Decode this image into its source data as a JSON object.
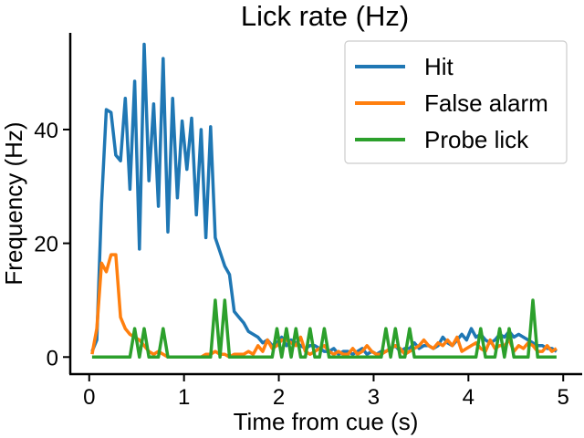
{
  "chart_data": {
    "type": "line",
    "title": "Lick rate (Hz)",
    "xlabel": "Time from cue (s)",
    "ylabel": "Frequency (Hz)",
    "xlim": [
      -0.2,
      5.2
    ],
    "ylim": [
      -3,
      57
    ],
    "xticks": [
      0,
      1,
      2,
      3,
      4,
      5
    ],
    "yticks": [
      0,
      20,
      40
    ],
    "legend": "top-right",
    "grid": false,
    "series": [
      {
        "name": "Hit",
        "color": "#1f77b4",
        "x": [
          0.03,
          0.08,
          0.13,
          0.18,
          0.23,
          0.28,
          0.33,
          0.38,
          0.43,
          0.48,
          0.53,
          0.58,
          0.63,
          0.68,
          0.73,
          0.78,
          0.83,
          0.88,
          0.93,
          0.98,
          1.03,
          1.08,
          1.13,
          1.18,
          1.23,
          1.28,
          1.33,
          1.38,
          1.43,
          1.48,
          1.53,
          1.58,
          1.63,
          1.68,
          1.73,
          1.78,
          1.83,
          1.88,
          1.93,
          1.98,
          2.03,
          2.08,
          2.13,
          2.18,
          2.23,
          2.28,
          2.33,
          2.38,
          2.43,
          2.48,
          2.53,
          2.58,
          2.63,
          2.68,
          2.73,
          2.78,
          2.83,
          2.88,
          2.93,
          2.98,
          3.03,
          3.08,
          3.13,
          3.18,
          3.23,
          3.28,
          3.33,
          3.38,
          3.43,
          3.48,
          3.53,
          3.58,
          3.63,
          3.68,
          3.73,
          3.78,
          3.83,
          3.88,
          3.93,
          3.98,
          4.03,
          4.08,
          4.13,
          4.18,
          4.23,
          4.28,
          4.33,
          4.38,
          4.43,
          4.48,
          4.53,
          4.58,
          4.63,
          4.68,
          4.73,
          4.78,
          4.83,
          4.88,
          4.93
        ],
        "y": [
          1,
          3,
          27,
          43.5,
          43,
          35.5,
          34.5,
          45.5,
          29.5,
          48.5,
          19,
          55,
          31,
          44.5,
          26.5,
          52.5,
          22,
          45.5,
          28,
          41.5,
          33,
          42,
          25,
          40,
          21,
          40.5,
          21,
          18.5,
          16,
          14.5,
          8,
          7,
          6,
          4.5,
          4,
          3.5,
          2.5,
          3,
          2,
          2.5,
          3.5,
          2,
          3,
          2.5,
          2,
          1.5,
          2,
          2,
          1.5,
          1,
          1,
          1.5,
          0.5,
          1,
          1,
          0.5,
          1,
          1.5,
          0.5,
          1,
          0.5,
          1,
          1,
          1.5,
          2,
          1,
          1.5,
          1.5,
          2.5,
          1.5,
          2,
          2,
          1.5,
          2,
          3.5,
          2.5,
          2,
          3,
          4,
          3,
          5,
          3.5,
          4,
          3,
          2.5,
          3,
          4,
          3.5,
          4.5,
          3.5,
          4,
          3.5,
          3,
          2.5,
          2,
          2,
          1.5,
          1.5,
          1
        ]
      },
      {
        "name": "False alarm",
        "color": "#ff7f0e",
        "x": [
          0.03,
          0.08,
          0.13,
          0.18,
          0.23,
          0.28,
          0.33,
          0.38,
          0.43,
          0.48,
          0.53,
          0.58,
          0.63,
          0.68,
          0.73,
          0.78,
          0.83,
          0.88,
          0.93,
          0.98,
          1.03,
          1.08,
          1.13,
          1.18,
          1.23,
          1.28,
          1.33,
          1.38,
          1.43,
          1.48,
          1.53,
          1.58,
          1.63,
          1.68,
          1.73,
          1.78,
          1.83,
          1.88,
          1.93,
          1.98,
          2.03,
          2.08,
          2.13,
          2.18,
          2.23,
          2.28,
          2.33,
          2.38,
          2.43,
          2.48,
          2.53,
          2.58,
          2.63,
          2.68,
          2.73,
          2.78,
          2.83,
          2.88,
          2.93,
          2.98,
          3.03,
          3.08,
          3.13,
          3.18,
          3.23,
          3.28,
          3.33,
          3.38,
          3.43,
          3.48,
          3.53,
          3.58,
          3.63,
          3.68,
          3.73,
          3.78,
          3.83,
          3.88,
          3.93,
          3.98,
          4.03,
          4.08,
          4.13,
          4.18,
          4.23,
          4.28,
          4.33,
          4.38,
          4.43,
          4.48,
          4.53,
          4.58,
          4.63,
          4.68,
          4.73,
          4.78,
          4.83,
          4.88,
          4.93
        ],
        "y": [
          0.5,
          5,
          16.5,
          15,
          18,
          18,
          7,
          5,
          4,
          3.5,
          3,
          2,
          1,
          0.5,
          1,
          0.5,
          0,
          0,
          0,
          0,
          0,
          0,
          0,
          0,
          0.5,
          0.5,
          1,
          0.5,
          0.5,
          0,
          0.5,
          0.5,
          0.5,
          1,
          0.5,
          2,
          1,
          3,
          1.5,
          2,
          3,
          3,
          2.5,
          2,
          3.5,
          1,
          0.5,
          1,
          1.5,
          2,
          1,
          0.5,
          1,
          0.5,
          0.5,
          1.5,
          0.5,
          1,
          2,
          1,
          0.5,
          0.5,
          1,
          1.5,
          2,
          1.5,
          0.5,
          1,
          1.5,
          2,
          3,
          2,
          1.5,
          2.5,
          2,
          3,
          2,
          3.5,
          1,
          1.5,
          2,
          2.5,
          1.5,
          1,
          3,
          1.5,
          2,
          2,
          3,
          1,
          2,
          1.5,
          2.5,
          2,
          1,
          1,
          2,
          1,
          1.5
        ]
      },
      {
        "name": "Probe lick",
        "color": "#2ca02c",
        "x": [
          0.03,
          0.08,
          0.13,
          0.18,
          0.23,
          0.28,
          0.33,
          0.38,
          0.43,
          0.48,
          0.53,
          0.58,
          0.63,
          0.68,
          0.73,
          0.78,
          0.83,
          0.88,
          0.93,
          0.98,
          1.03,
          1.08,
          1.13,
          1.18,
          1.23,
          1.28,
          1.33,
          1.38,
          1.43,
          1.48,
          1.53,
          1.58,
          1.63,
          1.68,
          1.73,
          1.78,
          1.83,
          1.88,
          1.93,
          1.98,
          2.03,
          2.08,
          2.13,
          2.18,
          2.23,
          2.28,
          2.33,
          2.38,
          2.43,
          2.48,
          2.53,
          2.58,
          2.63,
          2.68,
          2.73,
          2.78,
          2.83,
          2.88,
          2.93,
          2.98,
          3.03,
          3.08,
          3.13,
          3.18,
          3.23,
          3.28,
          3.33,
          3.38,
          3.43,
          3.48,
          3.53,
          3.58,
          3.63,
          3.68,
          3.73,
          3.78,
          3.83,
          3.88,
          3.93,
          3.98,
          4.03,
          4.08,
          4.13,
          4.18,
          4.23,
          4.28,
          4.33,
          4.38,
          4.43,
          4.48,
          4.53,
          4.58,
          4.63,
          4.68,
          4.73,
          4.78,
          4.83,
          4.88,
          4.93
        ],
        "y": [
          0,
          0,
          0,
          0,
          0,
          0,
          0,
          0,
          0,
          5,
          0,
          5,
          0,
          0,
          0,
          5,
          0,
          0,
          0,
          0,
          0,
          0,
          0,
          0,
          0,
          0,
          10,
          0,
          10,
          0,
          0,
          0,
          0,
          0,
          0,
          0,
          0,
          0,
          0,
          5,
          0,
          5,
          0,
          5,
          0,
          0,
          5,
          0,
          0,
          5,
          0,
          0,
          0,
          0,
          0,
          0,
          0,
          0,
          0,
          0,
          0,
          0,
          5,
          0,
          5,
          0,
          0,
          5,
          0,
          0,
          0,
          0,
          0,
          0,
          0,
          0,
          0,
          0,
          0,
          0,
          0,
          0,
          5,
          0,
          0,
          0,
          5,
          0,
          5,
          0,
          0,
          0,
          0,
          10,
          0,
          0,
          0,
          0,
          0
        ]
      }
    ]
  }
}
